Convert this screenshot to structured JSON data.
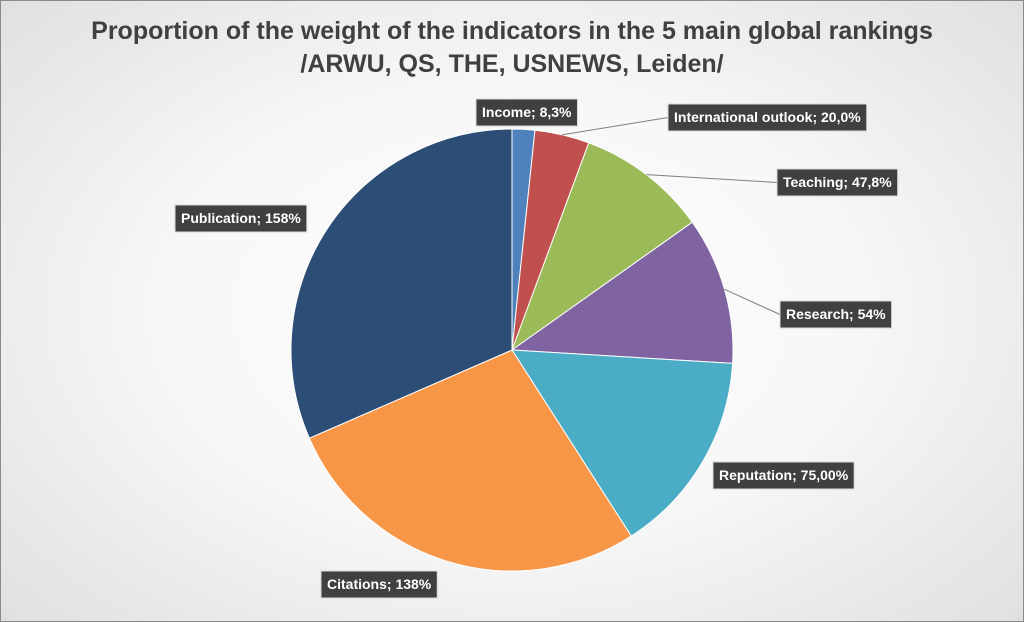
{
  "chart_data": {
    "type": "pie",
    "title": "Proportion of the weight of the indicators in the 5 main global rankings",
    "subtitle": "/ARWU, QS, THE, USNEWS, Leiden/",
    "start_angle_deg": 0,
    "direction": "clockwise",
    "legend": "none",
    "slices": [
      {
        "label": "Income",
        "value": 8.3,
        "display": "Income; 8,3%",
        "color": "#4F81BD"
      },
      {
        "label": "International outlook",
        "value": 20.0,
        "display": "International outlook; 20,0%",
        "color": "#C0504D"
      },
      {
        "label": "Teaching",
        "value": 47.8,
        "display": "Teaching; 47,8%",
        "color": "#9BBB59"
      },
      {
        "label": "Research",
        "value": 54,
        "display": "Research; 54%",
        "color": "#8064A2"
      },
      {
        "label": "Reputation",
        "value": 75.0,
        "display": "Reputation; 75,00%",
        "color": "#4BACC6"
      },
      {
        "label": "Citations",
        "value": 138,
        "display": "Citations; 138%",
        "color": "#F79646"
      },
      {
        "label": "Publication",
        "value": 158,
        "display": "Publication; 158%",
        "color": "#2C4D75"
      }
    ]
  }
}
